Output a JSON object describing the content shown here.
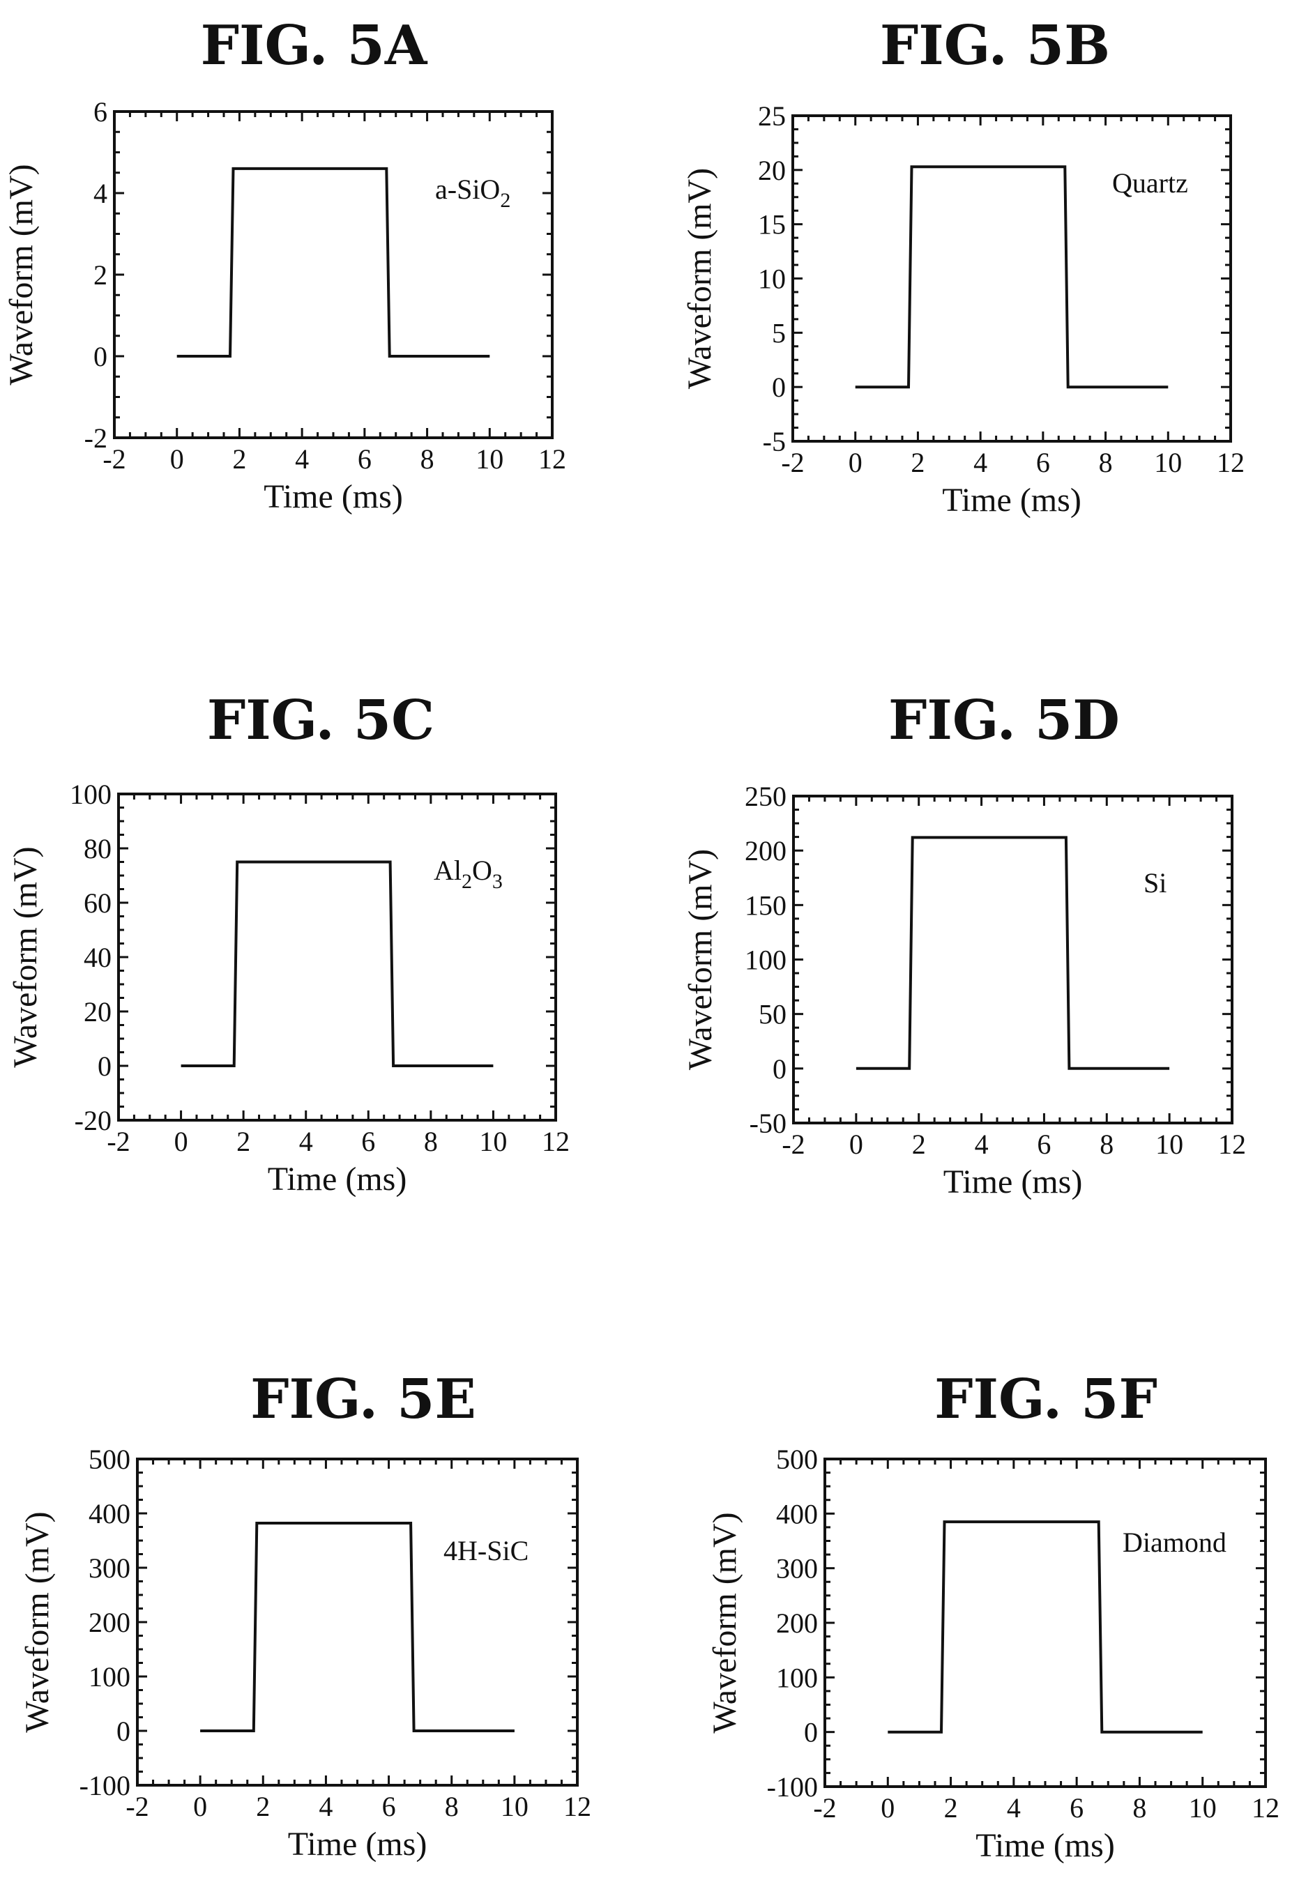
{
  "chart_data": [
    {
      "type": "line",
      "title": "FIG. 5A",
      "xlabel": "Time (ms)",
      "ylabel": "Waveform (mV)",
      "annotation": {
        "text": "a-SiO",
        "sub": "2"
      },
      "xlim": [
        -2,
        12
      ],
      "xticks": [
        -2,
        0,
        2,
        4,
        6,
        8,
        10,
        12
      ],
      "ylim": [
        -2,
        6
      ],
      "yticks": [
        -2,
        0,
        2,
        4,
        6
      ],
      "grid": false,
      "series": [
        {
          "x": [
            0,
            1.7,
            1.8,
            6.7,
            6.8,
            10
          ],
          "y": [
            0,
            0,
            4.6,
            4.6,
            0,
            0
          ]
        }
      ]
    },
    {
      "type": "line",
      "title": "FIG. 5B",
      "xlabel": "Time (ms)",
      "ylabel": "Waveform (mV)",
      "annotation": {
        "text": "Quartz",
        "sub": ""
      },
      "xlim": [
        -2,
        12
      ],
      "xticks": [
        -2,
        0,
        2,
        4,
        6,
        8,
        10,
        12
      ],
      "ylim": [
        -5,
        25
      ],
      "yticks": [
        -5,
        0,
        5,
        10,
        15,
        20,
        25
      ],
      "grid": false,
      "series": [
        {
          "x": [
            0,
            1.7,
            1.8,
            6.7,
            6.8,
            10
          ],
          "y": [
            0,
            0,
            20.3,
            20.3,
            0,
            0
          ]
        }
      ]
    },
    {
      "type": "line",
      "title": "FIG. 5C",
      "xlabel": "Time (ms)",
      "ylabel": "Waveform (mV)",
      "annotation": {
        "text": "Al",
        "sub": "2",
        "text2": "O",
        "sub2": "3"
      },
      "xlim": [
        -2,
        12
      ],
      "xticks": [
        -2,
        0,
        2,
        4,
        6,
        8,
        10,
        12
      ],
      "ylim": [
        -20,
        100
      ],
      "yticks": [
        -20,
        0,
        20,
        40,
        60,
        80,
        100
      ],
      "grid": false,
      "series": [
        {
          "x": [
            0,
            1.7,
            1.8,
            6.7,
            6.8,
            10
          ],
          "y": [
            0,
            0,
            75,
            75,
            0,
            0
          ]
        }
      ]
    },
    {
      "type": "line",
      "title": "FIG. 5D",
      "xlabel": "Time (ms)",
      "ylabel": "Waveform (mV)",
      "annotation": {
        "text": "Si",
        "sub": ""
      },
      "xlim": [
        -2,
        12
      ],
      "xticks": [
        -2,
        0,
        2,
        4,
        6,
        8,
        10,
        12
      ],
      "ylim": [
        -50,
        250
      ],
      "yticks": [
        -50,
        0,
        50,
        100,
        150,
        200,
        250
      ],
      "grid": false,
      "series": [
        {
          "x": [
            0,
            1.7,
            1.8,
            6.7,
            6.8,
            10
          ],
          "y": [
            0,
            0,
            212,
            212,
            0,
            0
          ]
        }
      ]
    },
    {
      "type": "line",
      "title": "FIG. 5E",
      "xlabel": "Time (ms)",
      "ylabel": "Waveform (mV)",
      "annotation": {
        "text": "4H-SiC",
        "sub": ""
      },
      "xlim": [
        -2,
        12
      ],
      "xticks": [
        -2,
        0,
        2,
        4,
        6,
        8,
        10,
        12
      ],
      "ylim": [
        -100,
        500
      ],
      "yticks": [
        -100,
        0,
        100,
        200,
        300,
        400,
        500
      ],
      "grid": false,
      "series": [
        {
          "x": [
            0,
            1.7,
            1.8,
            6.7,
            6.8,
            10
          ],
          "y": [
            0,
            0,
            382,
            382,
            0,
            0
          ]
        }
      ]
    },
    {
      "type": "line",
      "title": "FIG. 5F",
      "xlabel": "Time (ms)",
      "ylabel": "Waveform (mV)",
      "annotation": {
        "text": "Diamond",
        "sub": ""
      },
      "xlim": [
        -2,
        12
      ],
      "xticks": [
        -2,
        0,
        2,
        4,
        6,
        8,
        10,
        12
      ],
      "ylim": [
        -100,
        500
      ],
      "yticks": [
        -100,
        0,
        100,
        200,
        300,
        400,
        500
      ],
      "grid": false,
      "series": [
        {
          "x": [
            0,
            1.7,
            1.8,
            6.7,
            6.8,
            10
          ],
          "y": [
            0,
            0,
            385,
            385,
            0,
            0
          ]
        }
      ]
    }
  ]
}
